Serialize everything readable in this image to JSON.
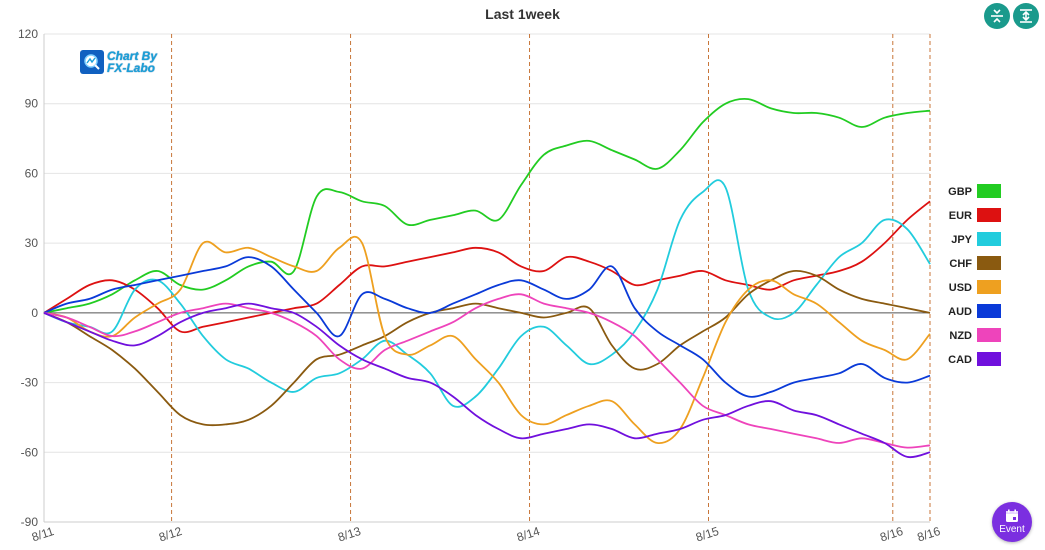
{
  "title": "Last 1week",
  "watermark": {
    "line1": "Chart By",
    "line2": "FX-Labo"
  },
  "event_button": {
    "label": "Event"
  },
  "chart_data": {
    "type": "line",
    "title": "Last 1week",
    "ylim": [
      -90,
      120
    ],
    "yticks": [
      120,
      90,
      60,
      30,
      0,
      -30,
      -60,
      -90
    ],
    "xlim": [
      0,
      100
    ],
    "date_ticks": [
      {
        "label": "8/11",
        "x": 0
      },
      {
        "label": "8/12",
        "x": 14.4
      },
      {
        "label": "8/13",
        "x": 34.6
      },
      {
        "label": "8/14",
        "x": 54.8
      },
      {
        "label": "8/15",
        "x": 75.0
      },
      {
        "label": "8/16",
        "x": 95.8
      },
      {
        "label": "8/16",
        "x": 100
      }
    ],
    "grid": true,
    "legend_position": "right",
    "series": [
      {
        "name": "GBP",
        "color": "#22cc22",
        "values": [
          0,
          2,
          4,
          8,
          14,
          18,
          12,
          10,
          14,
          20,
          22,
          18,
          50,
          52,
          48,
          46,
          38,
          40,
          42,
          44,
          40,
          55,
          68,
          72,
          74,
          70,
          66,
          62,
          70,
          82,
          90,
          92,
          88,
          86,
          86,
          84,
          80,
          84,
          86,
          87
        ]
      },
      {
        "name": "EUR",
        "color": "#dd1111",
        "values": [
          0,
          6,
          12,
          14,
          10,
          2,
          -8,
          -6,
          -4,
          -2,
          0,
          2,
          4,
          12,
          20,
          20,
          22,
          24,
          26,
          28,
          26,
          20,
          18,
          24,
          22,
          18,
          12,
          14,
          16,
          18,
          14,
          12,
          10,
          14,
          16,
          18,
          22,
          30,
          40,
          48
        ]
      },
      {
        "name": "JPY",
        "color": "#22ccdd",
        "values": [
          0,
          -4,
          -6,
          -8,
          10,
          14,
          4,
          -10,
          -20,
          -24,
          -30,
          -34,
          -28,
          -26,
          -20,
          -12,
          -18,
          -26,
          -40,
          -36,
          -24,
          -10,
          -6,
          -14,
          -22,
          -18,
          -8,
          10,
          40,
          52,
          54,
          10,
          -2,
          0,
          12,
          24,
          30,
          40,
          36,
          21
        ]
      },
      {
        "name": "CHF",
        "color": "#8a5a10",
        "values": [
          0,
          -4,
          -10,
          -16,
          -24,
          -34,
          -44,
          -48,
          -48,
          -46,
          -40,
          -30,
          -20,
          -18,
          -14,
          -10,
          -4,
          0,
          2,
          4,
          2,
          0,
          -2,
          0,
          2,
          -14,
          -24,
          -22,
          -14,
          -8,
          -2,
          8,
          14,
          18,
          16,
          10,
          6,
          4,
          2,
          0
        ]
      },
      {
        "name": "USD",
        "color": "#eea020",
        "values": [
          0,
          -2,
          -8,
          -10,
          -2,
          4,
          10,
          30,
          26,
          28,
          24,
          20,
          18,
          28,
          30,
          -10,
          -18,
          -14,
          -10,
          -20,
          -30,
          -44,
          -48,
          -44,
          -40,
          -38,
          -48,
          -56,
          -50,
          -28,
          -4,
          10,
          14,
          8,
          4,
          -4,
          -12,
          -16,
          -20,
          -9
        ]
      },
      {
        "name": "AUD",
        "color": "#0a3ad8",
        "values": [
          0,
          4,
          6,
          10,
          12,
          14,
          16,
          18,
          20,
          24,
          20,
          10,
          0,
          -10,
          8,
          6,
          2,
          0,
          4,
          8,
          12,
          14,
          10,
          6,
          10,
          20,
          2,
          -8,
          -14,
          -20,
          -30,
          -36,
          -34,
          -30,
          -28,
          -26,
          -22,
          -28,
          -30,
          -27
        ]
      },
      {
        "name": "NZD",
        "color": "#ee44bb",
        "values": [
          0,
          -2,
          -6,
          -10,
          -8,
          -4,
          0,
          2,
          4,
          2,
          0,
          -4,
          -10,
          -20,
          -24,
          -16,
          -12,
          -8,
          -4,
          2,
          6,
          8,
          4,
          2,
          0,
          -4,
          -10,
          -20,
          -30,
          -40,
          -44,
          -48,
          -50,
          -52,
          -54,
          -56,
          -54,
          -56,
          -58,
          -57
        ]
      },
      {
        "name": "CAD",
        "color": "#7010dd",
        "values": [
          0,
          -4,
          -8,
          -12,
          -14,
          -10,
          -4,
          0,
          2,
          4,
          2,
          0,
          -6,
          -14,
          -20,
          -24,
          -28,
          -30,
          -36,
          -44,
          -50,
          -54,
          -52,
          -50,
          -48,
          -50,
          -54,
          -52,
          -50,
          -46,
          -44,
          -40,
          -38,
          -42,
          -44,
          -48,
          -52,
          -56,
          -62,
          -60
        ]
      }
    ]
  }
}
